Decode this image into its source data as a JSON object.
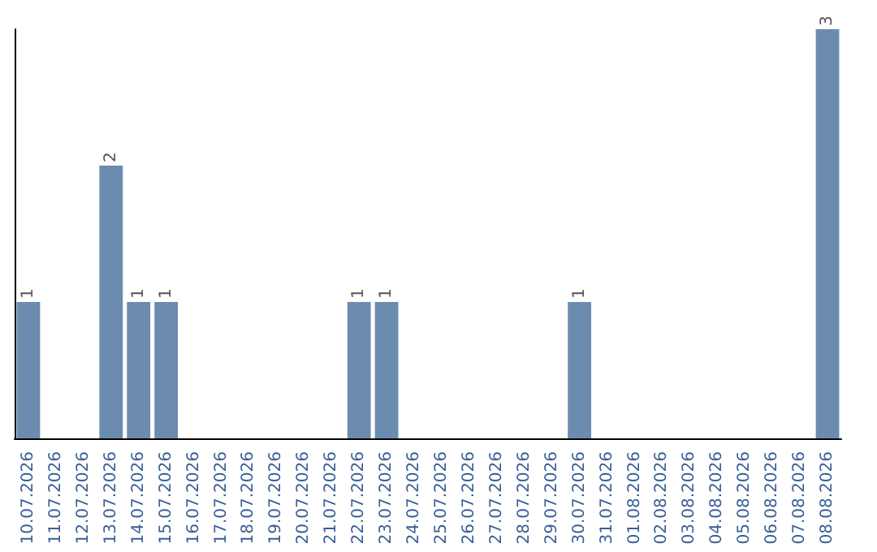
{
  "chart_data": {
    "type": "bar",
    "categories": [
      "10.07.2026",
      "11.07.2026",
      "12.07.2026",
      "13.07.2026",
      "14.07.2026",
      "15.07.2026",
      "16.07.2026",
      "17.07.2026",
      "18.07.2026",
      "19.07.2026",
      "20.07.2026",
      "21.07.2026",
      "22.07.2026",
      "23.07.2026",
      "24.07.2026",
      "25.07.2026",
      "26.07.2026",
      "27.07.2026",
      "28.07.2026",
      "29.07.2026",
      "30.07.2026",
      "31.07.2026",
      "01.08.2026",
      "02.08.2026",
      "03.08.2026",
      "04.08.2026",
      "05.08.2026",
      "06.08.2026",
      "07.08.2026",
      "08.08.2026"
    ],
    "values": [
      1,
      0,
      0,
      2,
      1,
      1,
      0,
      0,
      0,
      0,
      0,
      0,
      1,
      1,
      0,
      0,
      0,
      0,
      0,
      0,
      1,
      0,
      0,
      0,
      0,
      0,
      0,
      0,
      0,
      3
    ],
    "value_labels": [
      "1",
      null,
      null,
      "2",
      "1",
      "1",
      null,
      null,
      null,
      null,
      null,
      null,
      "1",
      "1",
      null,
      null,
      null,
      null,
      null,
      null,
      "1",
      null,
      null,
      null,
      null,
      null,
      null,
      null,
      null,
      "3"
    ],
    "color": "#6b8cae",
    "grid": false
  }
}
